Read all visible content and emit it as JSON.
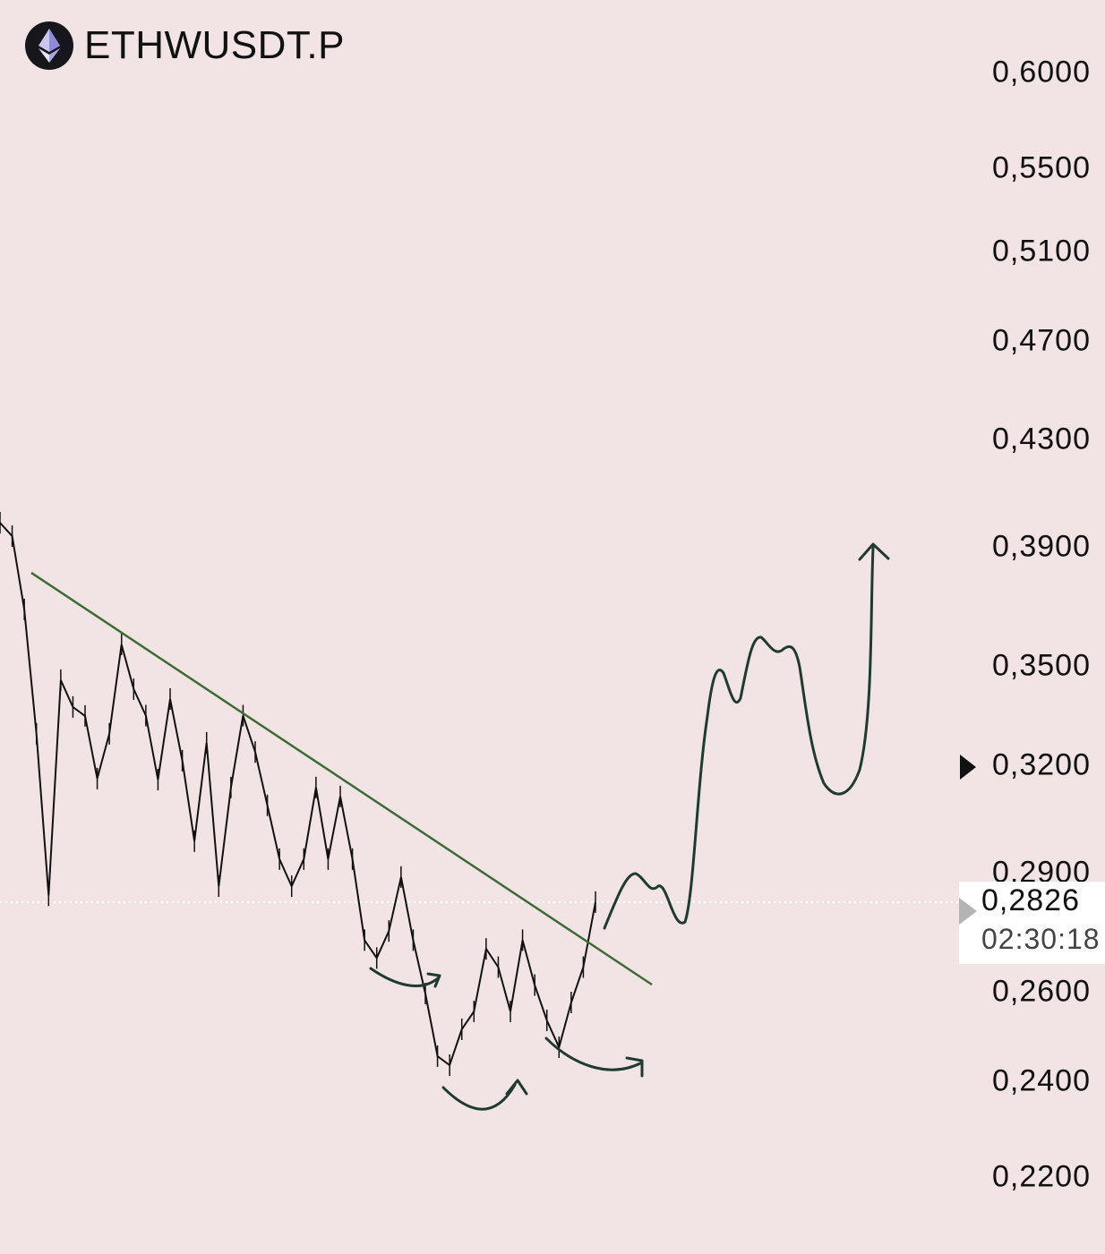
{
  "header": {
    "symbol": "ETHWUSDT.P",
    "icon": "ethereum-icon"
  },
  "chart_data": {
    "type": "line",
    "title": "ETHWUSDT.P",
    "y_ticks": [
      "0,6000",
      "0,5500",
      "0,5100",
      "0,4700",
      "0,4300",
      "0,3900",
      "0,3500",
      "0,3200",
      "0,2900",
      "0,2600",
      "0,2400",
      "0,2200"
    ],
    "y_tick_values": [
      0.6,
      0.55,
      0.51,
      0.47,
      0.43,
      0.39,
      0.35,
      0.32,
      0.29,
      0.26,
      0.24,
      0.22
    ],
    "series": [
      {
        "values": [
          0.399,
          0.394,
          0.369,
          0.3295,
          0.2843,
          0.3457,
          0.3376,
          0.3349,
          0.3163,
          0.3295,
          0.3572,
          0.343,
          0.335,
          0.316,
          0.34,
          0.3214,
          0.2988,
          0.3268,
          0.2866,
          0.3138,
          0.335,
          0.324,
          0.3088,
          0.2938,
          0.2866,
          0.2938,
          0.3138,
          0.2938,
          0.3113,
          0.2938,
          0.273,
          0.2685,
          0.2753,
          0.2889,
          0.273,
          0.2596,
          0.2456,
          0.2436,
          0.2516,
          0.2556,
          0.2708,
          0.2662,
          0.2556,
          0.273,
          0.2617,
          0.2536,
          0.2476,
          0.2576,
          0.2662,
          0.2826
        ]
      }
    ],
    "trendline": {
      "start": 0.3813,
      "end": 0.2618,
      "color": "#3d6b35"
    },
    "current_price": {
      "value": 0.2826,
      "label": "0,2826",
      "countdown": "02:30:18"
    },
    "marker_level": "0,3200",
    "annotation_color": "#1f3a30",
    "grid": false,
    "line_color": "#111111",
    "background": "#f2e4e4"
  }
}
